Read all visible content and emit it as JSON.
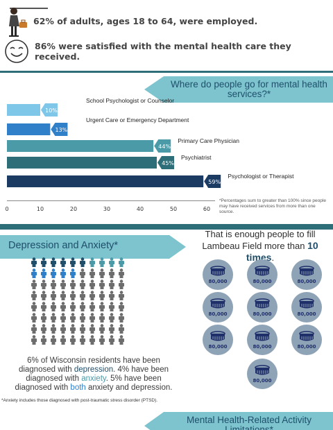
{
  "top_stats": {
    "employed_text": "62% of adults, ages 18 to 64, were employed.",
    "satisfied_text": "86% were satisfied with the mental health care they received."
  },
  "services": {
    "title": "Where do people go for mental health services?*",
    "footnote": "*Percentages sum to greater than 100% since people may have received services from more than one source."
  },
  "chart_data": {
    "type": "bar",
    "orientation": "horizontal",
    "categories": [
      "School Psychologist or Counselor",
      "Urgent Care or Emergency Department",
      "Primary Care Physician",
      "Psychiatrist",
      "Psychologist or Therapist"
    ],
    "values": [
      10,
      13,
      44,
      45,
      59
    ],
    "value_labels": [
      "10%",
      "13%",
      "44%",
      "45%",
      "59%"
    ],
    "colors": [
      "#7fc7e8",
      "#2f7fc9",
      "#4a9aa7",
      "#2d6e78",
      "#1b3b63"
    ],
    "xlim": [
      0,
      60
    ],
    "xticks": [
      "0",
      "10",
      "20",
      "30",
      "40",
      "50",
      "60"
    ]
  },
  "depression": {
    "title": "Depression and Anxiety*",
    "figures": {
      "total": 80,
      "depression_only": 6,
      "anxiety_only": 4,
      "both": 5,
      "colors": {
        "depression": "#1f4f6a",
        "anxiety": "#4a9aa7",
        "both": "#2f7fc9",
        "none": "#6d6d6d"
      }
    },
    "line1": "6% of Wisconsin residents have been",
    "line2_pre": "diagnosed with ",
    "kw_depression": "depression",
    "line2_post": ". 4% have been",
    "line3_pre": "diagnosed with ",
    "kw_anxiety": "anxiety",
    "line3_post": ". 5% have been",
    "line4_pre": "diagnosed with ",
    "kw_both": "both",
    "line4_post": " anxiety and depression.",
    "note": "*Anxiety includes those diagnosed with post-traumatic stress disorder (PTSD)."
  },
  "lambeau": {
    "line1": "That is enough people to fill",
    "line2_pre": "Lambeau Field more than ",
    "count": "10 times",
    "line2_post": ".",
    "stadium_label": "80,000",
    "stadium_count": 10
  },
  "limitations": {
    "title": "Mental Health-Related Activity Limitations*"
  }
}
